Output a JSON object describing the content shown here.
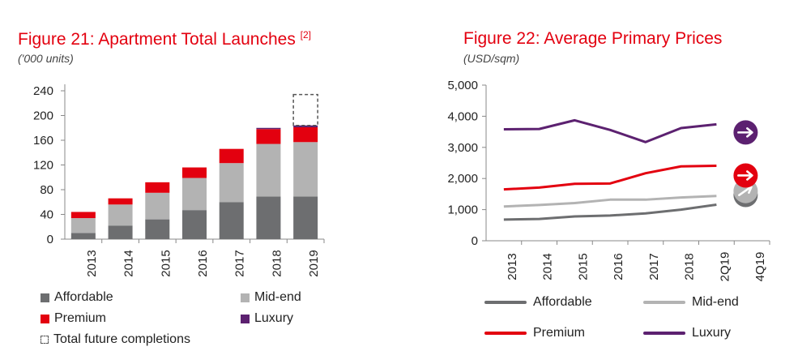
{
  "figure21": {
    "title": "Figure 21: Apartment Total Launches ",
    "title_note": "[2]",
    "subtitle": "('000 units)",
    "legend": {
      "affordable": "Affordable",
      "mid_end": "Mid-end",
      "premium": "Premium",
      "luxury": "Luxury",
      "future": "Total future completions"
    }
  },
  "figure22": {
    "title": "Figure 22:  Average Primary Prices",
    "subtitle": "(USD/sqm)",
    "legend": {
      "affordable": "Affordable",
      "mid_end": "Mid-end",
      "premium": "Premium",
      "luxury": "Luxury"
    }
  },
  "colors": {
    "affordable": "#6d6e70",
    "mid_end": "#b3b3b3",
    "premium": "#e3000f",
    "luxury": "#5c2170",
    "axis": "#888888"
  },
  "chart_data": [
    {
      "type": "bar",
      "stacked": true,
      "categories": [
        "2013",
        "2014",
        "2015",
        "2016",
        "2017",
        "2018",
        "2019"
      ],
      "ylim": [
        0,
        240
      ],
      "yticks": [
        0,
        40,
        80,
        120,
        160,
        200,
        240
      ],
      "series": [
        {
          "name": "Affordable",
          "values": [
            10,
            22,
            32,
            47,
            60,
            69,
            69
          ]
        },
        {
          "name": "Mid-end",
          "values": [
            24,
            34,
            43,
            52,
            63,
            85,
            88
          ]
        },
        {
          "name": "Premium",
          "values": [
            10,
            10,
            17,
            17,
            23,
            24,
            24
          ]
        },
        {
          "name": "Luxury",
          "values": [
            0,
            0,
            0,
            0,
            0,
            2,
            3
          ]
        }
      ],
      "future_completions": {
        "name": "Total future completions",
        "category": "2019",
        "value": 234
      },
      "grid": false
    },
    {
      "type": "line",
      "x": [
        "2013",
        "2014",
        "2015",
        "2016",
        "2017",
        "2018",
        "2Q19",
        "4Q19"
      ],
      "ylim": [
        0,
        5000
      ],
      "yticks": [
        0,
        1000,
        2000,
        3000,
        4000,
        5000
      ],
      "ytick_labels": [
        "0",
        "1,000",
        "2,000",
        "3,000",
        "4,000",
        "5,000"
      ],
      "series": [
        {
          "name": "Affordable",
          "values": [
            680,
            700,
            780,
            810,
            880,
            1000,
            1160,
            null
          ],
          "outlook": "up"
        },
        {
          "name": "Mid-end",
          "values": [
            1100,
            1150,
            1210,
            1320,
            1320,
            1390,
            1440,
            null
          ],
          "outlook": "up"
        },
        {
          "name": "Premium",
          "values": [
            1650,
            1710,
            1830,
            1840,
            2170,
            2390,
            2410,
            null
          ],
          "outlook": "stable"
        },
        {
          "name": "Luxury",
          "values": [
            3580,
            3590,
            3870,
            3560,
            3170,
            3620,
            3740,
            null
          ],
          "outlook": "stable"
        }
      ],
      "grid": false
    }
  ]
}
